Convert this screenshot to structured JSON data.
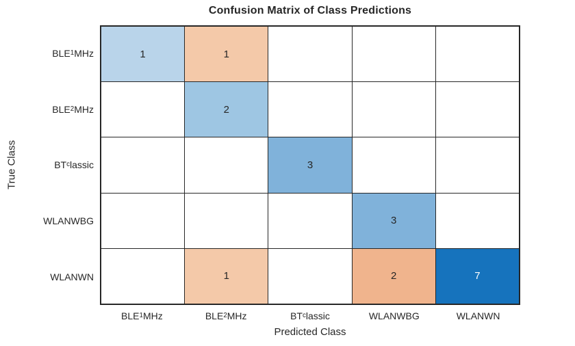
{
  "figure": {
    "title": "Confusion Matrix of Class Predictions"
  },
  "chart_data": {
    "type": "heatmap",
    "subtype": "confusion-matrix",
    "title": "Confusion Matrix of Class Predictions",
    "xlabel": "Predicted Class",
    "ylabel": "True Class",
    "classes": [
      "BLE_{1}MHz",
      "BLE_{2}MHz",
      "BT_{c}lassic",
      "WLANWBG",
      "WLANWN"
    ],
    "rows_axis": "True Class",
    "cols_axis": "Predicted Class",
    "matrix": [
      [
        1,
        1,
        0,
        0,
        0
      ],
      [
        0,
        2,
        0,
        0,
        0
      ],
      [
        0,
        0,
        3,
        0,
        0
      ],
      [
        0,
        0,
        0,
        3,
        0
      ],
      [
        0,
        1,
        0,
        2,
        7
      ]
    ],
    "show_zeros": false,
    "cells": [
      {
        "row": 0,
        "col": 0,
        "value": 1,
        "fill": "#b9d4ea",
        "text_color": "#262626"
      },
      {
        "row": 0,
        "col": 1,
        "value": 1,
        "fill": "#f4c9a9",
        "text_color": "#262626"
      },
      {
        "row": 1,
        "col": 1,
        "value": 2,
        "fill": "#9ec6e3",
        "text_color": "#262626"
      },
      {
        "row": 2,
        "col": 2,
        "value": 3,
        "fill": "#80b2da",
        "text_color": "#262626"
      },
      {
        "row": 3,
        "col": 3,
        "value": 3,
        "fill": "#80b2da",
        "text_color": "#262626"
      },
      {
        "row": 4,
        "col": 1,
        "value": 1,
        "fill": "#f4c9a9",
        "text_color": "#262626"
      },
      {
        "row": 4,
        "col": 3,
        "value": 2,
        "fill": "#f0b48d",
        "text_color": "#262626"
      },
      {
        "row": 4,
        "col": 4,
        "value": 7,
        "fill": "#1673bd",
        "text_color": "#ffffff"
      }
    ],
    "colors": {
      "diagonal_base": "#1673bd",
      "off_diagonal_base": "#e07b39",
      "empty_fill": "#ffffff",
      "grid_line": "#262626",
      "text": "#262626"
    },
    "legend": "none",
    "grid": "on"
  }
}
